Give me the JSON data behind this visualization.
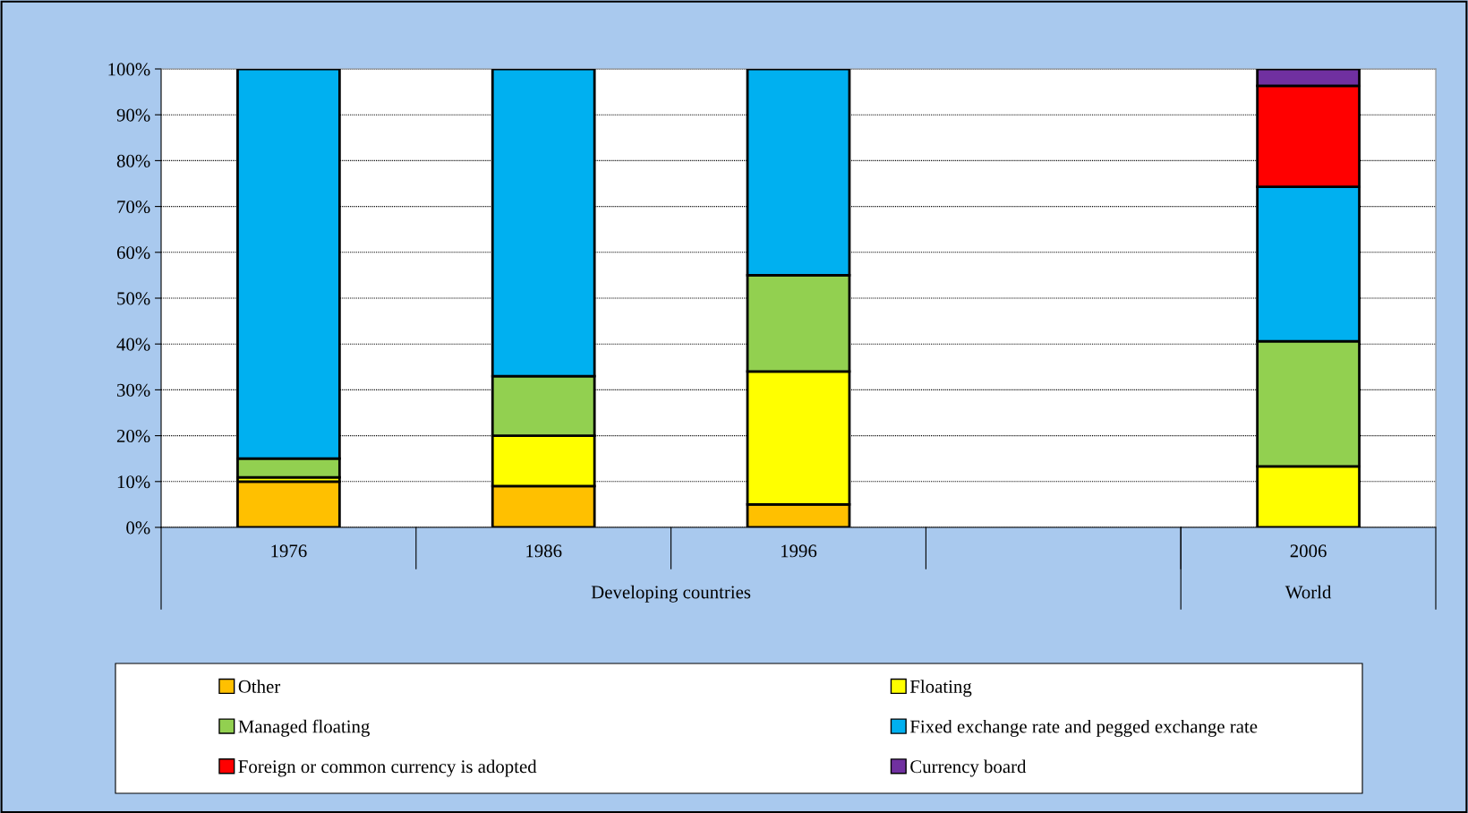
{
  "chart_data": {
    "type": "bar",
    "stacked": true,
    "categories": [
      "1976",
      "1986",
      "1996",
      null,
      "2006"
    ],
    "annotations": [
      "Developing countries",
      "World"
    ],
    "series": [
      {
        "name": "Other",
        "color": "#ffc000",
        "values": [
          10,
          9,
          5,
          null,
          0
        ]
      },
      {
        "name": "Floating",
        "color": "#ffff00",
        "values": [
          0.9,
          11,
          29,
          null,
          13.3
        ]
      },
      {
        "name": "Managed floating",
        "color": "#92d050",
        "values": [
          4.1,
          13,
          21,
          null,
          27.3
        ]
      },
      {
        "name": "Fixed exchange rate and pegged exchange rate",
        "color": "#00b0f0",
        "values": [
          85,
          67,
          45,
          null,
          33.7
        ]
      },
      {
        "name": "Foreign or common currency is adopted",
        "color": "#ff0000",
        "values": [
          0,
          0,
          0,
          null,
          22
        ]
      },
      {
        "name": "Currency board",
        "color": "#7030a0",
        "values": [
          0,
          0,
          0,
          null,
          3.7
        ]
      }
    ],
    "ylim": [
      0,
      100
    ],
    "yticks": [
      {
        "value": 0,
        "label": "0%"
      },
      {
        "value": 10,
        "label": "10%"
      },
      {
        "value": 20,
        "label": "20%"
      },
      {
        "value": 30,
        "label": "30%"
      },
      {
        "value": 40,
        "label": "40%"
      },
      {
        "value": 50,
        "label": "50%"
      },
      {
        "value": 60,
        "label": "60%"
      },
      {
        "value": 70,
        "label": "70%"
      },
      {
        "value": 80,
        "label": "80%"
      },
      {
        "value": 90,
        "label": "90%"
      },
      {
        "value": 100,
        "label": "100%"
      }
    ],
    "grid": "y",
    "legend": "bottom"
  }
}
